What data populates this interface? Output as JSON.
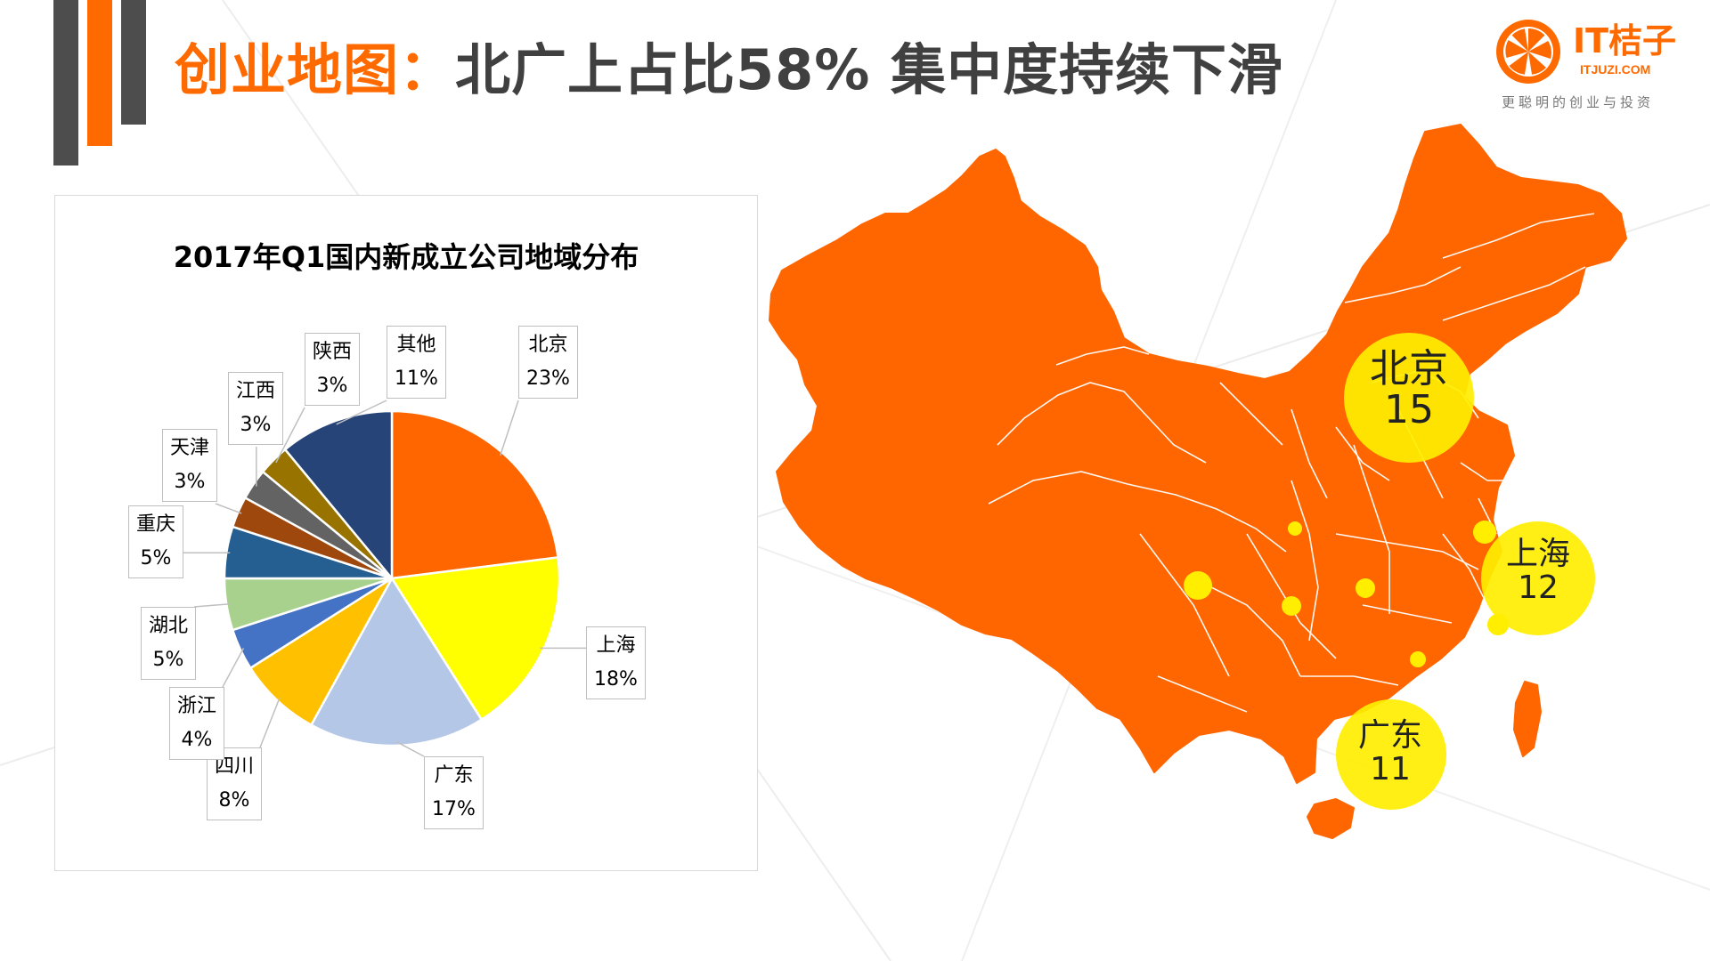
{
  "header": {
    "title_part1": "创业地图：",
    "title_part2": "北广上占比58%  集中度持续下滑"
  },
  "logo": {
    "name": "IT桔子",
    "url": "ITJUZI.COM",
    "slogan": "更聪明的创业与投资"
  },
  "colors": {
    "accent": "#ff6a00",
    "dark": "#4d4d4d",
    "bubble": "#ffee00"
  },
  "chart_data": {
    "type": "pie",
    "title": "2017年Q1国内新成立公司地域分布",
    "slices": [
      {
        "name": "北京",
        "value": 23,
        "label": "23%",
        "color": "#ff6600"
      },
      {
        "name": "上海",
        "value": 18,
        "label": "18%",
        "color": "#ffff00"
      },
      {
        "name": "广东",
        "value": 17,
        "label": "17%",
        "color": "#b4c7e7"
      },
      {
        "name": "四川",
        "value": 8,
        "label": "8%",
        "color": "#ffc000"
      },
      {
        "name": "浙江",
        "value": 4,
        "label": "4%",
        "color": "#4472c4"
      },
      {
        "name": "湖北",
        "value": 5,
        "label": "5%",
        "color": "#a9d18e"
      },
      {
        "name": "重庆",
        "value": 5,
        "label": "5%",
        "color": "#255e91"
      },
      {
        "name": "天津",
        "value": 3,
        "label": "3%",
        "color": "#9e480e"
      },
      {
        "name": "江西",
        "value": 3,
        "label": "3%",
        "color": "#636363"
      },
      {
        "name": "陕西",
        "value": 3,
        "label": "3%",
        "color": "#997300"
      },
      {
        "name": "其他",
        "value": 11,
        "label": "11%",
        "color": "#264478"
      }
    ]
  },
  "map": {
    "highlights": [
      {
        "name": "北京",
        "value": "15"
      },
      {
        "name": "上海",
        "value": "12"
      },
      {
        "name": "广东",
        "value": "11"
      }
    ]
  }
}
